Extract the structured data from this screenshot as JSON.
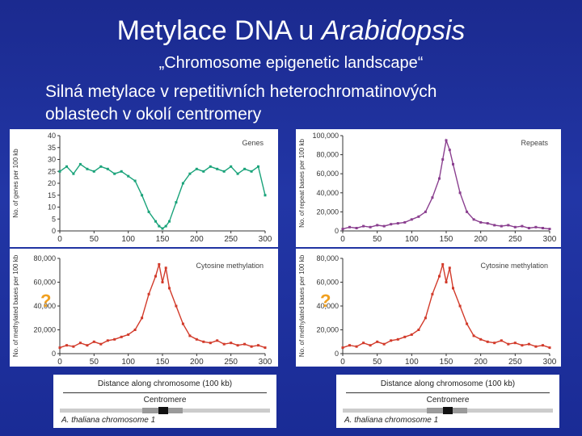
{
  "slide": {
    "title_main": "Metylace DNA u ",
    "title_italic": "Arabidopsis",
    "subtitle": "„Chromosome epigenetic landscape“",
    "body_line1": "Silná metylace v repetitivních heterochromatinových",
    "body_line2": "oblastech v okolí centromery",
    "qmark": "?"
  },
  "strip": {
    "distance_label": "Distance along chromosome (100 kb)",
    "centromere_label": "Centromere",
    "chromosome_label": "A. thaliana chromosome 1"
  },
  "colors": {
    "genes": "#1aa37a",
    "repeats": "#8a3f8f",
    "methylation": "#d23a2a",
    "qmark": "#f0a020"
  },
  "chart_data": [
    {
      "type": "line",
      "title": "Genes",
      "ylabel": "No. of genes per 100 kb",
      "xlim": [
        0,
        300
      ],
      "ylim": [
        0,
        40
      ],
      "x_ticks": [
        0,
        50,
        100,
        150,
        200,
        250,
        300
      ],
      "y_ticks": [
        0,
        5,
        10,
        15,
        20,
        25,
        30,
        35,
        40
      ],
      "series": [
        {
          "x": [
            0,
            10,
            20,
            30,
            40,
            50,
            60,
            70,
            80,
            90,
            100,
            110,
            120,
            130,
            140,
            145,
            150,
            155,
            160,
            170,
            180,
            190,
            200,
            210,
            220,
            230,
            240,
            250,
            260,
            270,
            280,
            290,
            300
          ],
          "values": [
            25,
            27,
            24,
            28,
            26,
            25,
            27,
            26,
            24,
            25,
            23,
            21,
            15,
            8,
            4,
            2,
            1,
            2,
            4,
            12,
            20,
            24,
            26,
            25,
            27,
            26,
            25,
            27,
            24,
            26,
            25,
            27,
            15
          ]
        }
      ]
    },
    {
      "type": "line",
      "title": "Repeats",
      "ylabel": "No. of repeat bases per 100 kb",
      "xlim": [
        0,
        300
      ],
      "ylim": [
        0,
        100000
      ],
      "x_ticks": [
        0,
        50,
        100,
        150,
        200,
        250,
        300
      ],
      "y_ticks": [
        0,
        20000,
        40000,
        60000,
        80000,
        100000
      ],
      "y_tick_labels": [
        "0",
        "20,000",
        "40,000",
        "60,000",
        "80,000",
        "100,000"
      ],
      "series": [
        {
          "x": [
            0,
            10,
            20,
            30,
            40,
            50,
            60,
            70,
            80,
            90,
            100,
            110,
            120,
            130,
            140,
            145,
            150,
            155,
            160,
            170,
            180,
            190,
            200,
            210,
            220,
            230,
            240,
            250,
            260,
            270,
            280,
            290,
            300
          ],
          "values": [
            2000,
            4000,
            3000,
            5000,
            4000,
            6000,
            5000,
            7000,
            8000,
            9000,
            12000,
            15000,
            20000,
            35000,
            55000,
            75000,
            95000,
            85000,
            70000,
            40000,
            20000,
            12000,
            9000,
            8000,
            6000,
            5000,
            6000,
            4000,
            5000,
            3000,
            4000,
            3000,
            2000
          ]
        }
      ]
    },
    {
      "type": "line",
      "title": "Cytosine methylation",
      "ylabel": "No. of methylated bases per 100 kb",
      "xlim": [
        0,
        300
      ],
      "ylim": [
        0,
        80000
      ],
      "x_ticks": [
        0,
        50,
        100,
        150,
        200,
        250,
        300
      ],
      "y_ticks": [
        0,
        20000,
        40000,
        60000,
        80000
      ],
      "y_tick_labels": [
        "0",
        "20,000",
        "40,000",
        "60,000",
        "80,000"
      ],
      "series": [
        {
          "x": [
            0,
            10,
            20,
            30,
            40,
            50,
            60,
            70,
            80,
            90,
            100,
            110,
            120,
            130,
            140,
            145,
            150,
            155,
            160,
            170,
            180,
            190,
            200,
            210,
            220,
            230,
            240,
            250,
            260,
            270,
            280,
            290,
            300
          ],
          "values": [
            5000,
            7000,
            6000,
            9000,
            7000,
            10000,
            8000,
            11000,
            12000,
            14000,
            16000,
            20000,
            30000,
            50000,
            65000,
            75000,
            60000,
            72000,
            55000,
            40000,
            25000,
            15000,
            12000,
            10000,
            9000,
            11000,
            8000,
            9000,
            7000,
            8000,
            6000,
            7000,
            5000
          ]
        }
      ]
    },
    {
      "type": "line",
      "title": "Cytosine methylation",
      "ylabel": "No. of methylated bases per 100 kb",
      "xlim": [
        0,
        300
      ],
      "ylim": [
        0,
        80000
      ],
      "x_ticks": [
        0,
        50,
        100,
        150,
        200,
        250,
        300
      ],
      "y_ticks": [
        0,
        20000,
        40000,
        60000,
        80000
      ],
      "y_tick_labels": [
        "0",
        "20,000",
        "40,000",
        "60,000",
        "80,000"
      ],
      "series": [
        {
          "x": [
            0,
            10,
            20,
            30,
            40,
            50,
            60,
            70,
            80,
            90,
            100,
            110,
            120,
            130,
            140,
            145,
            150,
            155,
            160,
            170,
            180,
            190,
            200,
            210,
            220,
            230,
            240,
            250,
            260,
            270,
            280,
            290,
            300
          ],
          "values": [
            5000,
            7000,
            6000,
            9000,
            7000,
            10000,
            8000,
            11000,
            12000,
            14000,
            16000,
            20000,
            30000,
            50000,
            65000,
            75000,
            60000,
            72000,
            55000,
            40000,
            25000,
            15000,
            12000,
            10000,
            9000,
            11000,
            8000,
            9000,
            7000,
            8000,
            6000,
            7000,
            5000
          ]
        }
      ]
    }
  ]
}
